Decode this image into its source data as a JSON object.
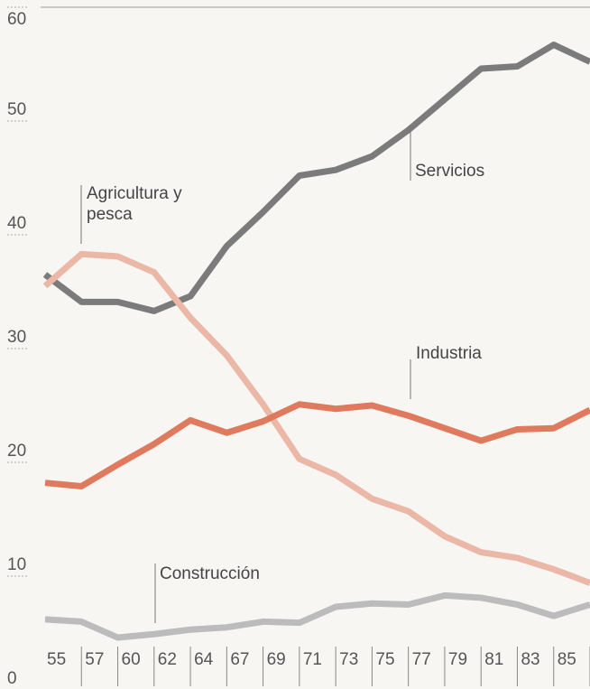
{
  "chart_data": {
    "type": "line",
    "categories": [
      "55",
      "57",
      "60",
      "62",
      "64",
      "67",
      "69",
      "71",
      "73",
      "75",
      "77",
      "79",
      "81",
      "83",
      "85",
      null
    ],
    "series": [
      {
        "name": "Servicios",
        "color": "#7b7b7b",
        "values": [
          36.5,
          34.1,
          34.1,
          33.3,
          34.6,
          39.0,
          42.0,
          45.2,
          45.7,
          46.9,
          49.2,
          51.9,
          54.6,
          54.8,
          56.7,
          55.2
        ]
      },
      {
        "name": "Agricultura y pesca",
        "color": "#ebb8a8",
        "values": [
          35.5,
          38.3,
          38.1,
          36.7,
          32.7,
          29.4,
          25.1,
          20.3,
          18.9,
          16.8,
          15.7,
          13.5,
          12.1,
          11.6,
          10.6,
          9.4
        ]
      },
      {
        "name": "Industria",
        "color": "#df7a5e",
        "values": [
          18.2,
          17.9,
          19.8,
          21.6,
          23.7,
          22.6,
          23.6,
          25.1,
          24.7,
          25.0,
          24.1,
          23.0,
          21.9,
          22.9,
          23.0,
          24.6
        ]
      },
      {
        "name": "Construcción",
        "color": "#bcbcbc",
        "values": [
          6.2,
          6.0,
          4.6,
          4.9,
          5.3,
          5.5,
          6.0,
          5.9,
          7.3,
          7.6,
          7.5,
          8.3,
          8.1,
          7.5,
          6.5,
          7.5
        ]
      }
    ],
    "ylim": [
      0,
      60
    ],
    "yticks": [
      0,
      10,
      20,
      30,
      40,
      50,
      60
    ]
  }
}
